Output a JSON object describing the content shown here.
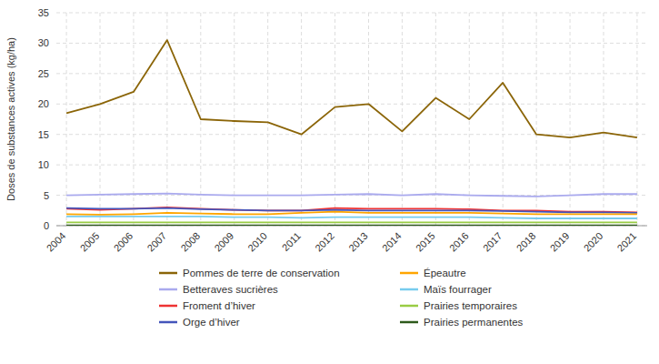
{
  "chart_data": {
    "type": "line",
    "y_label": "Doses de substances actives (kg/ha)",
    "x": [
      2004,
      2005,
      2006,
      2007,
      2008,
      2009,
      2010,
      2011,
      2012,
      2013,
      2014,
      2015,
      2016,
      2017,
      2018,
      2019,
      2020,
      2021
    ],
    "xlim": [
      2003.7,
      2021.3
    ],
    "xticks": [
      2004,
      2005,
      2006,
      2007,
      2008,
      2009,
      2010,
      2011,
      2012,
      2013,
      2014,
      2015,
      2016,
      2017,
      2018,
      2019,
      2020,
      2021
    ],
    "ylim": [
      0,
      35
    ],
    "yticks": [
      0,
      5,
      10,
      15,
      20,
      25,
      30,
      35
    ],
    "grid": true,
    "legend": "bottom",
    "series": [
      {
        "name": "Pommes de terre de conservation",
        "color": "#8B6508",
        "values": [
          18.5,
          20.0,
          22.0,
          30.5,
          17.5,
          17.2,
          17.0,
          15.0,
          19.5,
          20.0,
          15.5,
          21.0,
          17.5,
          23.5,
          15.0,
          14.5,
          15.3,
          14.5
        ]
      },
      {
        "name": "Betteraves sucrières",
        "color": "#AAAAEE",
        "values": [
          5.0,
          5.1,
          5.2,
          5.3,
          5.1,
          5.0,
          5.0,
          5.0,
          5.1,
          5.2,
          5.0,
          5.2,
          5.0,
          4.9,
          4.8,
          5.0,
          5.2,
          5.2
        ]
      },
      {
        "name": "Froment d’hiver",
        "color": "#EE3333",
        "values": [
          2.8,
          2.6,
          2.8,
          3.0,
          2.8,
          2.6,
          2.5,
          2.5,
          2.9,
          2.8,
          2.8,
          2.8,
          2.7,
          2.5,
          2.5,
          2.3,
          2.3,
          2.2
        ]
      },
      {
        "name": "Orge d’hiver",
        "color": "#4455BB",
        "values": [
          2.9,
          2.8,
          2.8,
          2.9,
          2.7,
          2.6,
          2.5,
          2.5,
          2.6,
          2.5,
          2.5,
          2.5,
          2.5,
          2.4,
          2.3,
          2.2,
          2.2,
          2.1
        ]
      },
      {
        "name": "Épeautre",
        "color": "#FFA500",
        "values": [
          1.9,
          1.8,
          1.9,
          2.1,
          2.0,
          1.9,
          1.9,
          2.1,
          2.3,
          2.1,
          2.1,
          2.1,
          2.1,
          2.0,
          1.9,
          1.9,
          1.9,
          1.9
        ]
      },
      {
        "name": "Maïs fourrager",
        "color": "#77CCEE",
        "values": [
          1.5,
          1.5,
          1.5,
          1.5,
          1.5,
          1.4,
          1.4,
          1.3,
          1.4,
          1.4,
          1.4,
          1.4,
          1.4,
          1.3,
          1.2,
          1.2,
          1.2,
          1.2
        ]
      },
      {
        "name": "Prairies temporaires",
        "color": "#99CC44",
        "values": [
          0.55,
          0.55,
          0.55,
          0.55,
          0.55,
          0.55,
          0.55,
          0.55,
          0.55,
          0.55,
          0.55,
          0.55,
          0.55,
          0.55,
          0.55,
          0.55,
          0.55,
          0.55
        ]
      },
      {
        "name": "Prairies permanentes",
        "color": "#2D5A1B",
        "values": [
          0.05,
          0.05,
          0.05,
          0.05,
          0.05,
          0.05,
          0.05,
          0.05,
          0.05,
          0.05,
          0.05,
          0.05,
          0.05,
          0.05,
          0.05,
          0.05,
          0.05,
          0.05
        ]
      }
    ]
  }
}
